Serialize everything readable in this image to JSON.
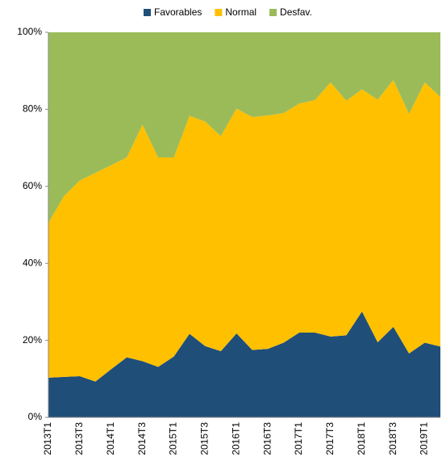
{
  "chart_data": {
    "type": "stacked_area",
    "categories": [
      "2013T1",
      null,
      "2013T3",
      null,
      "2014T1",
      null,
      "2014T3",
      null,
      "2015T1",
      null,
      "2015T3",
      null,
      "2016T1",
      null,
      "2016T3",
      null,
      "2017T1",
      null,
      "2017T3",
      null,
      "2018T1",
      null,
      "2018T3",
      null,
      "2019T1",
      null
    ],
    "series": [
      {
        "name": "Favorables",
        "color": "#1f4e79",
        "values": [
          10.3,
          10.5,
          10.7,
          9.3,
          12.5,
          15.6,
          14.6,
          13.1,
          15.8,
          21.7,
          18.5,
          17.2,
          21.8,
          17.5,
          17.8,
          19.4,
          22.0,
          22.0,
          21.0,
          21.3,
          27.5,
          19.5,
          23.5,
          16.6,
          19.4,
          18.4
        ]
      },
      {
        "name": "Normal",
        "color": "#ffc000",
        "values": [
          40.2,
          47.0,
          50.8,
          54.2,
          53.0,
          51.9,
          61.4,
          54.4,
          51.7,
          56.6,
          58.3,
          55.8,
          58.4,
          60.5,
          60.6,
          59.6,
          59.5,
          60.4,
          66.0,
          60.9,
          57.7,
          63.0,
          64.1,
          62.2,
          67.6,
          64.8
        ]
      },
      {
        "name": "Desfav.",
        "color": "#9bbb59",
        "values": [
          49.5,
          42.5,
          38.5,
          36.5,
          34.5,
          32.5,
          24.0,
          32.5,
          32.5,
          21.7,
          23.2,
          27.0,
          19.8,
          22.0,
          21.6,
          21.0,
          18.5,
          17.6,
          13.0,
          17.8,
          14.8,
          17.5,
          12.4,
          21.2,
          13.0,
          16.8
        ]
      }
    ],
    "ylim": [
      0,
      100
    ],
    "yticks": [
      {
        "value": 0,
        "label": "0%"
      },
      {
        "value": 20,
        "label": "20%"
      },
      {
        "value": 40,
        "label": "40%"
      },
      {
        "value": 60,
        "label": "60%"
      },
      {
        "value": 80,
        "label": "80%"
      },
      {
        "value": 100,
        "label": "100%"
      }
    ],
    "legend": "top"
  }
}
